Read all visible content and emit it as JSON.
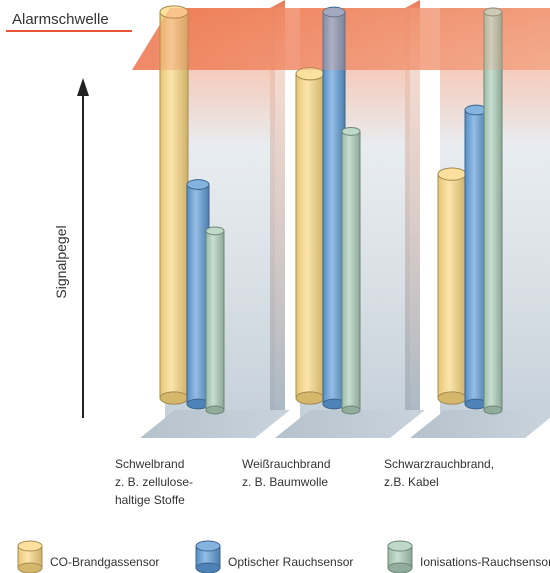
{
  "chart_data": {
    "type": "bar",
    "title": "",
    "threshold_label": "Alarmschwelle",
    "ylabel": "Signalpegel",
    "xlabel": "",
    "ylim": [
      0,
      100
    ],
    "threshold_value": 95,
    "categories": [
      [
        "Schwelbrand",
        "z. B. zellulose-",
        "haltige Stoffe"
      ],
      [
        "Weißrauchbrand",
        "z. B. Baumwolle"
      ],
      [
        "Schwarzrauchbrand,",
        "z.B. Kabel"
      ]
    ],
    "series": [
      {
        "name": "CO-Brandgassensor",
        "color": "#fbd77e",
        "values": [
          100,
          84,
          58
        ]
      },
      {
        "name": "Optischer Rauchsensor",
        "color": "#5b9ad6",
        "values": [
          56,
          100,
          75
        ]
      },
      {
        "name": "Ionisations-Rauchsensor",
        "color": "#a9ccb6",
        "values": [
          45,
          70,
          100
        ]
      }
    ]
  }
}
